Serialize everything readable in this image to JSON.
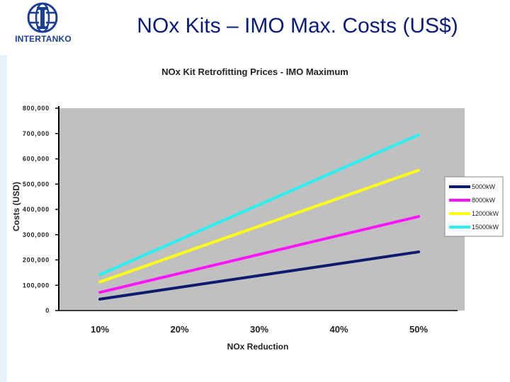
{
  "header": {
    "title": "NOx Kits – IMO Max. Costs (US$)",
    "logo_text": "INTERTANKO"
  },
  "colors": {
    "title": "#0a1c7a",
    "logo": "#1b3f93",
    "plot_bg": "#c0c0c0",
    "panel_bg": "#cfe8fb"
  },
  "chart_data": {
    "type": "line",
    "title": "NOx Kit Retrofitting Prices - IMO Maximum",
    "xlabel": "NOx Reduction",
    "ylabel": "Costs (USD)",
    "categories": [
      "10%",
      "20%",
      "30%",
      "40%",
      "50%"
    ],
    "x": [
      10,
      50
    ],
    "ylim": [
      0,
      800000
    ],
    "yticks": [
      0,
      100000,
      200000,
      300000,
      400000,
      500000,
      600000,
      700000,
      800000
    ],
    "ytick_labels": [
      "0",
      "100,000",
      "200,000",
      "300,000",
      "400,000",
      "500,000",
      "600,000",
      "700,000",
      "800,000"
    ],
    "grid": false,
    "legend_position": "right",
    "series": [
      {
        "name": "5000kW",
        "color": "#0d1a6e",
        "values": [
          45000,
          232000
        ]
      },
      {
        "name": "8000kW",
        "color": "#ff14ff",
        "values": [
          72000,
          372000
        ]
      },
      {
        "name": "12000kW",
        "color": "#ffff14",
        "values": [
          113000,
          555000
        ]
      },
      {
        "name": "15000kW",
        "color": "#28f0f0",
        "values": [
          142000,
          695000
        ]
      }
    ]
  }
}
